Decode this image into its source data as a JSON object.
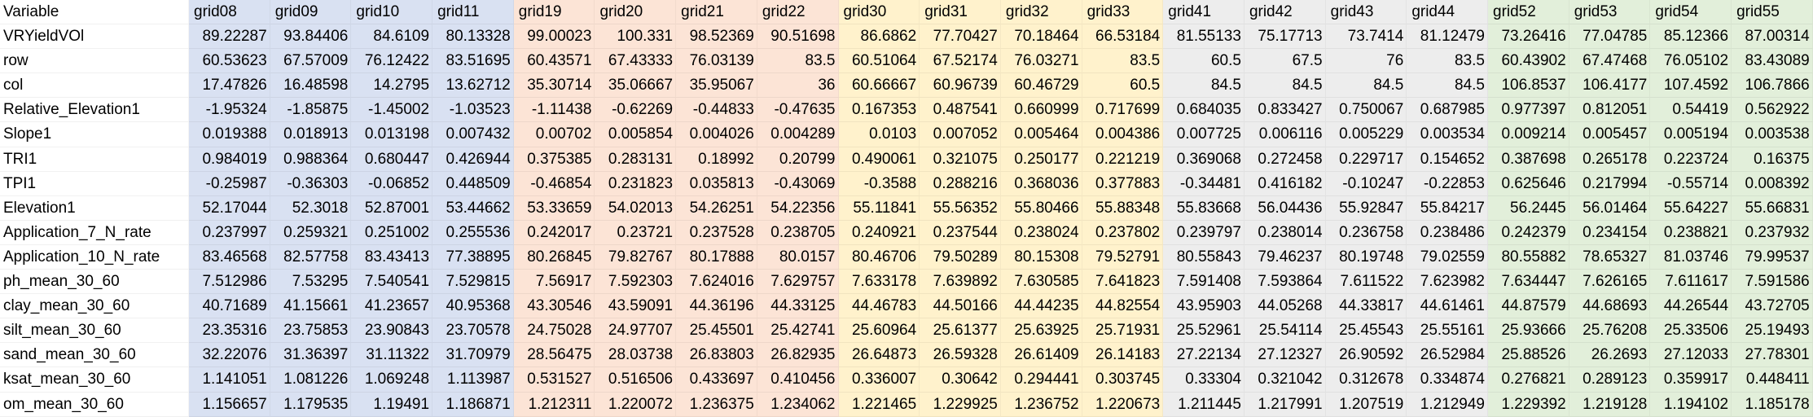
{
  "colors": {
    "blue": "#d9e1f2",
    "orange": "#fce4d6",
    "yellow": "#fff2cc",
    "gray": "#ededed",
    "green": "#e2efda"
  },
  "header": [
    "Variable",
    "grid08",
    "grid09",
    "grid10",
    "grid11",
    "grid19",
    "grid20",
    "grid21",
    "grid22",
    "grid30",
    "grid31",
    "grid32",
    "grid33",
    "grid41",
    "grid42",
    "grid43",
    "grid44",
    "grid52",
    "grid53",
    "grid54",
    "grid55"
  ],
  "column_groups": [
    "blue",
    "blue",
    "blue",
    "blue",
    "orange",
    "orange",
    "orange",
    "orange",
    "yellow",
    "yellow",
    "yellow",
    "yellow",
    "gray",
    "gray",
    "gray",
    "gray",
    "green",
    "green",
    "green",
    "green"
  ],
  "rows": [
    [
      "VRYieldVOl",
      "89.22287",
      "93.84406",
      "84.6109",
      "80.13328",
      "99.00023",
      "100.331",
      "98.52369",
      "90.51698",
      "86.6862",
      "77.70427",
      "70.18464",
      "66.53184",
      "81.55133",
      "75.17713",
      "73.7414",
      "81.12479",
      "73.26416",
      "77.04785",
      "85.12366",
      "87.00314"
    ],
    [
      "row",
      "60.53623",
      "67.57009",
      "76.12422",
      "83.51695",
      "60.43571",
      "67.43333",
      "76.03139",
      "83.5",
      "60.51064",
      "67.52174",
      "76.03271",
      "83.5",
      "60.5",
      "67.5",
      "76",
      "83.5",
      "60.43902",
      "67.47468",
      "76.05102",
      "83.43089"
    ],
    [
      "col",
      "17.47826",
      "16.48598",
      "14.2795",
      "13.62712",
      "35.30714",
      "35.06667",
      "35.95067",
      "36",
      "60.66667",
      "60.96739",
      "60.46729",
      "60.5",
      "84.5",
      "84.5",
      "84.5",
      "84.5",
      "106.8537",
      "106.4177",
      "107.4592",
      "106.7866"
    ],
    [
      "Relative_Elevation1",
      "-1.95324",
      "-1.85875",
      "-1.45002",
      "-1.03523",
      "-1.11438",
      "-0.62269",
      "-0.44833",
      "-0.47635",
      "0.167353",
      "0.487541",
      "0.660999",
      "0.717699",
      "0.684035",
      "0.833427",
      "0.750067",
      "0.687985",
      "0.977397",
      "0.812051",
      "0.54419",
      "0.562922"
    ],
    [
      "Slope1",
      "0.019388",
      "0.018913",
      "0.013198",
      "0.007432",
      "0.00702",
      "0.005854",
      "0.004026",
      "0.004289",
      "0.0103",
      "0.007052",
      "0.005464",
      "0.004386",
      "0.007725",
      "0.006116",
      "0.005229",
      "0.003534",
      "0.009214",
      "0.005457",
      "0.005194",
      "0.003538"
    ],
    [
      "TRI1",
      "0.984019",
      "0.988364",
      "0.680447",
      "0.426944",
      "0.375385",
      "0.283131",
      "0.18992",
      "0.20799",
      "0.490061",
      "0.321075",
      "0.250177",
      "0.221219",
      "0.369068",
      "0.272458",
      "0.229717",
      "0.154652",
      "0.387698",
      "0.265178",
      "0.223724",
      "0.16375"
    ],
    [
      "TPI1",
      "-0.25987",
      "-0.36303",
      "-0.06852",
      "0.448509",
      "-0.46854",
      "0.231823",
      "0.035813",
      "-0.43069",
      "-0.3588",
      "0.288216",
      "0.368036",
      "0.377883",
      "-0.34481",
      "0.416182",
      "-0.10247",
      "-0.22853",
      "0.625646",
      "0.217994",
      "-0.55714",
      "0.008392"
    ],
    [
      "Elevation1",
      "52.17044",
      "52.3018",
      "52.87001",
      "53.44662",
      "53.33659",
      "54.02013",
      "54.26251",
      "54.22356",
      "55.11841",
      "55.56352",
      "55.80466",
      "55.88348",
      "55.83668",
      "56.04436",
      "55.92847",
      "55.84217",
      "56.2445",
      "56.01464",
      "55.64227",
      "55.66831"
    ],
    [
      "Application_7_N_rate",
      "0.237997",
      "0.259321",
      "0.251002",
      "0.255536",
      "0.242017",
      "0.23721",
      "0.237528",
      "0.238705",
      "0.240921",
      "0.237544",
      "0.238024",
      "0.237802",
      "0.239797",
      "0.238014",
      "0.236758",
      "0.238486",
      "0.242379",
      "0.234154",
      "0.238821",
      "0.237932"
    ],
    [
      "Application_10_N_rate",
      "83.46568",
      "82.57758",
      "83.43413",
      "77.38895",
      "80.26845",
      "79.82767",
      "80.17888",
      "80.0157",
      "80.46706",
      "79.50289",
      "80.15308",
      "79.52791",
      "80.55843",
      "79.46237",
      "80.19748",
      "79.02559",
      "80.55882",
      "78.65327",
      "81.03746",
      "79.99537"
    ],
    [
      "ph_mean_30_60",
      "7.512986",
      "7.53295",
      "7.540541",
      "7.529815",
      "7.56917",
      "7.592303",
      "7.624016",
      "7.629757",
      "7.633178",
      "7.639892",
      "7.630585",
      "7.641823",
      "7.591408",
      "7.593864",
      "7.611522",
      "7.623982",
      "7.634447",
      "7.626165",
      "7.611617",
      "7.591586"
    ],
    [
      "clay_mean_30_60",
      "40.71689",
      "41.15661",
      "41.23657",
      "40.95368",
      "43.30546",
      "43.59091",
      "44.36196",
      "44.33125",
      "44.46783",
      "44.50166",
      "44.44235",
      "44.82554",
      "43.95903",
      "44.05268",
      "44.33817",
      "44.61461",
      "44.87579",
      "44.68693",
      "44.26544",
      "43.72705"
    ],
    [
      "silt_mean_30_60",
      "23.35316",
      "23.75853",
      "23.90843",
      "23.70578",
      "24.75028",
      "24.97707",
      "25.45501",
      "25.42741",
      "25.60964",
      "25.61377",
      "25.63925",
      "25.71931",
      "25.52961",
      "25.54114",
      "25.45543",
      "25.55161",
      "25.93666",
      "25.76208",
      "25.33506",
      "25.19493"
    ],
    [
      "sand_mean_30_60",
      "32.22076",
      "31.36397",
      "31.11322",
      "31.70979",
      "28.56475",
      "28.03738",
      "26.83803",
      "26.82935",
      "26.64873",
      "26.59328",
      "26.61409",
      "26.14183",
      "27.22134",
      "27.12327",
      "26.90592",
      "26.52984",
      "25.88526",
      "26.2693",
      "27.12033",
      "27.78301"
    ],
    [
      "ksat_mean_30_60",
      "1.141051",
      "1.081226",
      "1.069248",
      "1.113987",
      "0.531527",
      "0.516506",
      "0.433697",
      "0.410456",
      "0.336007",
      "0.30642",
      "0.294441",
      "0.303745",
      "0.33304",
      "0.321042",
      "0.312678",
      "0.334874",
      "0.276821",
      "0.289123",
      "0.359917",
      "0.448411"
    ],
    [
      "om_mean_30_60",
      "1.156657",
      "1.179535",
      "1.19491",
      "1.186871",
      "1.212311",
      "1.220072",
      "1.236375",
      "1.234062",
      "1.221465",
      "1.229925",
      "1.236752",
      "1.220673",
      "1.211445",
      "1.217991",
      "1.207519",
      "1.212949",
      "1.229392",
      "1.219128",
      "1.194102",
      "1.185178"
    ]
  ]
}
